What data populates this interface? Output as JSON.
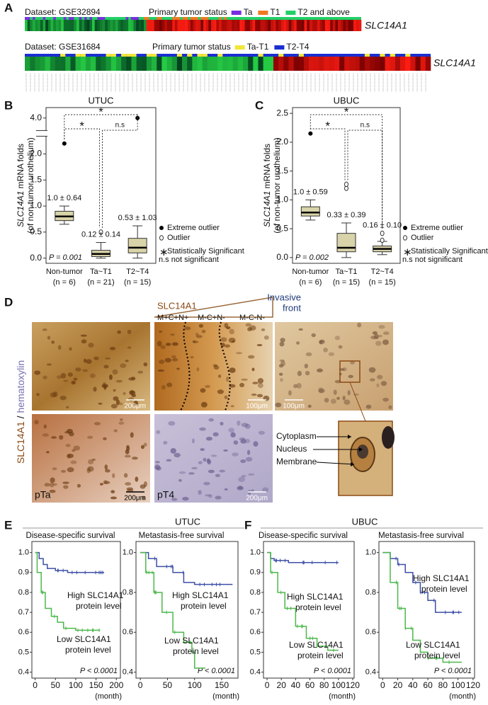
{
  "panel_a": {
    "label": "A",
    "rows": [
      {
        "dataset": "Dataset: GSE32894",
        "status_label": "Primary tumor status",
        "legend": [
          {
            "name": "Ta",
            "color": "#7a2de0"
          },
          {
            "name": "T1",
            "color": "#f07a22"
          },
          {
            "name": "T2 and above",
            "color": "#22d068"
          }
        ],
        "gene": "SLC14A1"
      },
      {
        "dataset": "Dataset: GSE31684",
        "status_label": "Primary tumor status",
        "legend": [
          {
            "name": "Ta-T1",
            "color": "#f2e63a"
          },
          {
            "name": "T2-T4",
            "color": "#1a2fd0"
          }
        ],
        "gene": "SLC14A1"
      }
    ]
  },
  "box_plots": [
    {
      "label": "B",
      "title": "UTUC",
      "ylabel": [
        "SLC14A1",
        " mRNA folds",
        "(of non-tumor urothelium)"
      ],
      "ylim": [
        -0.1,
        4.2
      ],
      "axis_break": [
        2.3,
        3.8
      ],
      "yticks": [
        {
          "value": 0,
          "label": "0.0"
        },
        0.5,
        {
          "value": 1,
          "label": "1.0"
        },
        1.5,
        {
          "value": 2,
          "label": "2.0"
        },
        {
          "value": 4,
          "label": "4.0"
        }
      ],
      "groups": [
        {
          "name": "Non-tumor",
          "n": "(n = 6)",
          "summary": "1.0 ± 0.64",
          "whisker_low": 0.65,
          "q1": 0.72,
          "median": 0.8,
          "q3": 0.9,
          "whisker_high": 1.0,
          "outliers": [],
          "extreme_outliers": [
            2.2
          ]
        },
        {
          "name": "Ta~T1",
          "n": "(n = 21)",
          "summary": "0.12 ± 0.14",
          "whisker_low": 0.0,
          "q1": 0.03,
          "median": 0.08,
          "q3": 0.15,
          "whisker_high": 0.3,
          "outliers": [
            0.5
          ],
          "extreme_outliers": []
        },
        {
          "name": "T2~T4",
          "n": "(n = 15)",
          "summary": "0.53 ± 1.03",
          "whisker_low": 0.0,
          "q1": 0.1,
          "median": 0.2,
          "q3": 0.38,
          "whisker_high": 0.62,
          "outliers": [],
          "extreme_outliers": [
            4.0
          ]
        }
      ],
      "p_value": "P = 0.001",
      "significance": [
        "*",
        "*",
        "n.s"
      ],
      "legend": [
        "Extreme outlier",
        "Outlier",
        "Statistically Significant",
        "n.s not significant"
      ]
    },
    {
      "label": "C",
      "title": "UBUC",
      "ylabel": [
        "SLC14A1",
        " mRNA folds",
        "(of non-tumor urothelium)"
      ],
      "ylim": [
        -0.1,
        2.6
      ],
      "yticks": [
        {
          "value": 0,
          "label": "0.0"
        },
        0.5,
        {
          "value": 1,
          "label": "1.0"
        },
        1.5,
        {
          "value": 2,
          "label": "2.0"
        },
        2.5
      ],
      "groups": [
        {
          "name": "Non-tumor",
          "n": "(n = 6)",
          "summary": "1.0 ± 0.59",
          "whisker_low": 0.65,
          "q1": 0.72,
          "median": 0.78,
          "q3": 0.88,
          "whisker_high": 1.0,
          "outliers": [],
          "extreme_outliers": [
            2.15
          ]
        },
        {
          "name": "Ta~T1",
          "n": "(n = 15)",
          "summary": "0.33 ± 0.39",
          "whisker_low": 0.0,
          "q1": 0.1,
          "median": 0.17,
          "q3": 0.42,
          "whisker_high": 0.6,
          "outliers": [
            1.2,
            1.27
          ],
          "extreme_outliers": []
        },
        {
          "name": "T2~T4",
          "n": "(n = 15)",
          "summary": "0.16 ± 0.10",
          "whisker_low": 0.05,
          "q1": 0.1,
          "median": 0.15,
          "q3": 0.2,
          "whisker_high": 0.28,
          "outliers": [
            0.3,
            0.42
          ],
          "extreme_outliers": []
        }
      ],
      "p_value": "P = 0.002",
      "significance": [
        "*",
        "*",
        "n.s"
      ],
      "legend": [
        "Extreme outlier",
        "Outlier",
        "Statistically Significant",
        "n.s not significant"
      ]
    }
  ],
  "panel_d": {
    "label": "D",
    "stain": "SLC14A1",
    "separator": " / ",
    "counterstain": "hematoxylin",
    "header": "SLC14A1",
    "invasive_front": [
      "Invasive",
      "front"
    ],
    "zones": [
      "M+C+N+",
      "M-C+N-",
      "M-C-N-"
    ],
    "scale_bars": [
      "200μm",
      "100μm",
      "100μm",
      "200μm",
      "200μm"
    ],
    "stages": [
      "pTa",
      "pT4"
    ],
    "compartments": [
      "Cytoplasm",
      "Nucleus",
      "Membrane"
    ]
  },
  "survival": [
    {
      "label": "E",
      "title": "UTUC",
      "plots": [
        {
          "subtitle": "Disease-specific survival",
          "xlim": [
            -8,
            210
          ],
          "xticks": [
            0,
            50,
            100,
            150,
            200
          ],
          "ylim": [
            0.37,
            1.02
          ],
          "yticks": [
            {
              "value": 1,
              "label": "1.0"
            },
            0.9,
            0.8,
            0.7,
            0.6,
            0.5,
            0.4
          ],
          "xlabel": "(month)",
          "p_value": "P < 0.0001",
          "series": [
            {
              "name_lines": [
                "High SLC14A1",
                "protein level"
              ],
              "color": "#3d4fa6",
              "x": [
                0,
                10,
                20,
                30,
                50,
                80,
                120,
                170
              ],
              "values": [
                1,
                0.97,
                0.94,
                0.92,
                0.91,
                0.9,
                0.9,
                0.9
              ]
            },
            {
              "name_lines": [
                "Low SLC14A1",
                "protein level"
              ],
              "color": "#4cb84c",
              "x": [
                0,
                5,
                15,
                25,
                40,
                55,
                70,
                100,
                130,
                160
              ],
              "values": [
                1,
                0.9,
                0.8,
                0.72,
                0.68,
                0.65,
                0.62,
                0.61,
                0.61,
                0.61
              ]
            }
          ]
        },
        {
          "subtitle": "Metastasis-free survival",
          "xlim": [
            -8,
            180
          ],
          "xticks": [
            0,
            50,
            100,
            150
          ],
          "ylim": [
            0.37,
            1.02
          ],
          "yticks": [
            {
              "value": 1,
              "label": "1.0"
            },
            0.8,
            0.6,
            0.4
          ],
          "xlabel": "(month)",
          "p_value": "P < 0.0001",
          "series": [
            {
              "name_lines": [
                "High SLC14A1",
                "protein level"
              ],
              "color": "#3d4fa6",
              "x": [
                0,
                15,
                30,
                60,
                80,
                100,
                170
              ],
              "values": [
                1,
                0.97,
                0.93,
                0.9,
                0.85,
                0.84,
                0.84
              ]
            },
            {
              "name_lines": [
                "Low SLC14A1",
                "protein level"
              ],
              "color": "#4cb84c",
              "x": [
                0,
                10,
                25,
                40,
                60,
                80,
                95,
                100,
                120
              ],
              "values": [
                1,
                0.9,
                0.8,
                0.7,
                0.6,
                0.55,
                0.5,
                0.42,
                0.42
              ]
            }
          ]
        }
      ]
    },
    {
      "label": "F",
      "title": "UBUC",
      "plots": [
        {
          "subtitle": "Disease-specific survival",
          "xlim": [
            -5,
            122
          ],
          "xticks": [
            0,
            20,
            40,
            60,
            80,
            100,
            120
          ],
          "ylim": [
            0.37,
            1.02
          ],
          "yticks": [
            {
              "value": 1,
              "label": "1.0"
            },
            0.9,
            0.8,
            0.7,
            0.6,
            0.5,
            0.4
          ],
          "xlabel": "(month)",
          "p_value": "P < 0.0001",
          "series": [
            {
              "name_lines": [
                "High SLC14A1",
                "protein level"
              ],
              "color": "#3d4fa6",
              "x": [
                0,
                5,
                10,
                30,
                60,
                100
              ],
              "values": [
                1,
                0.97,
                0.96,
                0.95,
                0.95,
                0.95
              ]
            },
            {
              "name_lines": [
                "Low SLC14A1",
                "protein level"
              ],
              "color": "#4cb84c",
              "x": [
                0,
                5,
                15,
                25,
                40,
                55,
                70,
                85,
                100
              ],
              "values": [
                1,
                0.9,
                0.8,
                0.72,
                0.63,
                0.57,
                0.53,
                0.51,
                0.51
              ]
            }
          ]
        },
        {
          "subtitle": "Metastasis-free survival",
          "xlim": [
            -5,
            122
          ],
          "xticks": [
            0,
            20,
            40,
            60,
            80,
            100,
            120
          ],
          "ylim": [
            0.37,
            1.02
          ],
          "yticks": [
            {
              "value": 1,
              "label": "1.0"
            },
            0.8,
            0.6,
            0.4
          ],
          "xlabel": "(month)",
          "p_value": "P < 0.0001",
          "series": [
            {
              "name_lines": [
                "High SLC14A1",
                "protein level"
              ],
              "color": "#3d4fa6",
              "x": [
                0,
                10,
                20,
                30,
                40,
                50,
                60,
                70,
                90,
                105
              ],
              "values": [
                1,
                0.97,
                0.94,
                0.9,
                0.85,
                0.8,
                0.76,
                0.7,
                0.7,
                0.7
              ]
            },
            {
              "name_lines": [
                "Low SLC14A1",
                "protein level"
              ],
              "color": "#4cb84c",
              "x": [
                0,
                10,
                20,
                30,
                40,
                50,
                60,
                80,
                100,
                105
              ],
              "values": [
                1,
                0.85,
                0.72,
                0.62,
                0.56,
                0.5,
                0.47,
                0.45,
                0.45,
                0.45
              ]
            }
          ]
        }
      ]
    }
  ]
}
